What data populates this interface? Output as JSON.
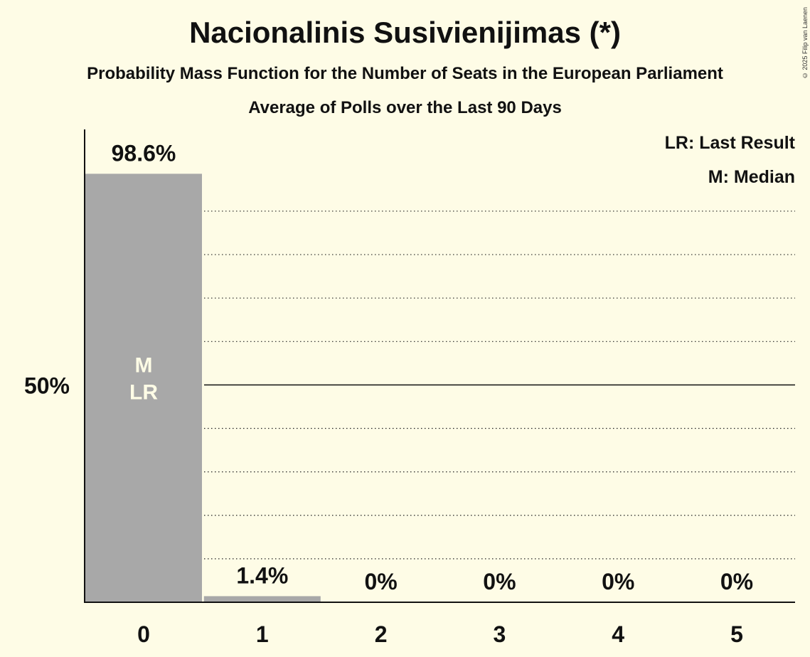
{
  "title": "Nacionalinis Susivienijimas (*)",
  "subtitle": "Probability Mass Function for the Number of Seats in the European Parliament",
  "subtitle2": "Average of Polls over the Last 90 Days",
  "copyright": "© 2025 Filip van Laenen",
  "legend": {
    "last_result": "LR: Last Result",
    "median": "M: Median"
  },
  "colors": {
    "background": "#fefce6",
    "bar": "#a8a8a8",
    "bar_label_inside": "#fefce6"
  },
  "chart_data": {
    "type": "bar",
    "categories": [
      "0",
      "1",
      "2",
      "3",
      "4",
      "5"
    ],
    "values": [
      98.6,
      1.4,
      0,
      0,
      0,
      0
    ],
    "value_labels": [
      "98.6%",
      "1.4%",
      "0%",
      "0%",
      "0%",
      "0%"
    ],
    "bar_markers": [
      [
        "M",
        "LR"
      ],
      [],
      [],
      [],
      [],
      []
    ],
    "ylim": [
      0,
      107.5
    ],
    "y_tick_labels": [
      {
        "value": 50,
        "label": "50%"
      }
    ],
    "gridlines_dotted": [
      10,
      20,
      30,
      40,
      60,
      70,
      80,
      90
    ],
    "gridline_solid": 50,
    "xlabel": "",
    "ylabel": "",
    "legend_placement": "top-right"
  }
}
